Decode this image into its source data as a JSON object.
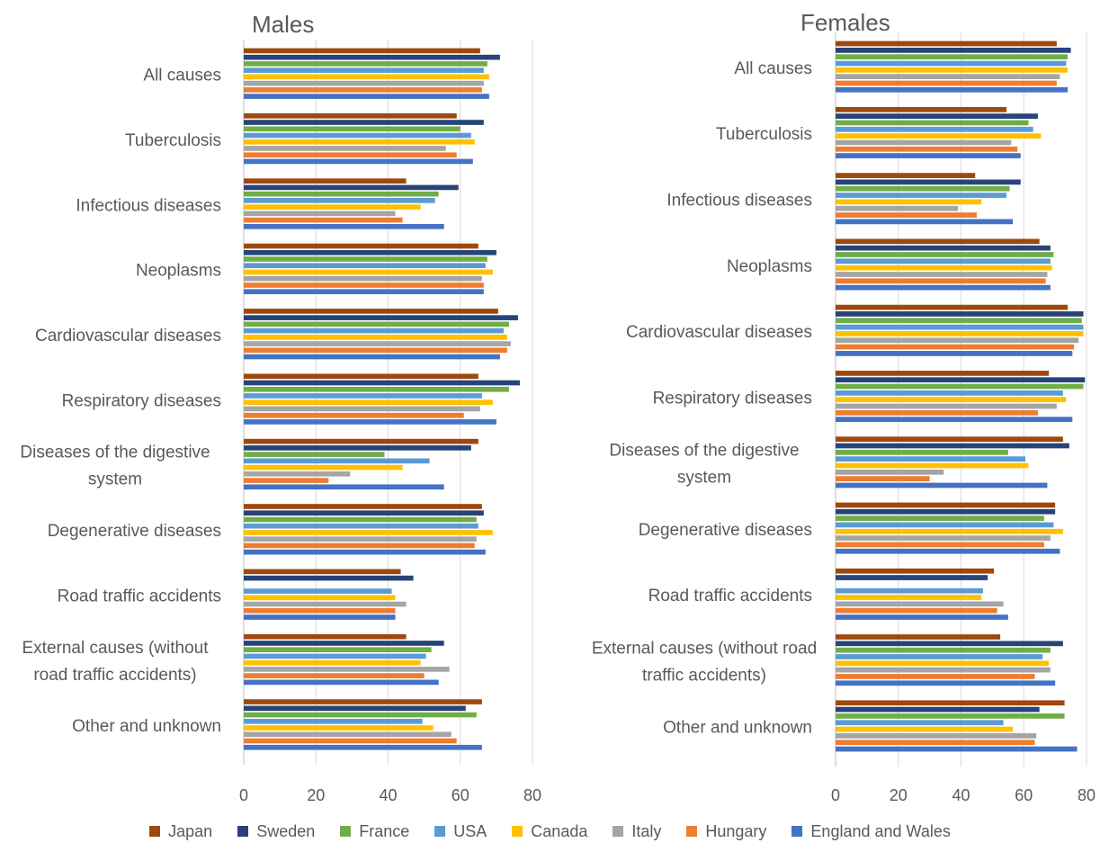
{
  "chart_data": [
    {
      "type": "bar",
      "orientation": "horizontal",
      "title": "Males",
      "categories": [
        "All causes",
        "Tuberculosis",
        "Infectious diseases",
        "Neoplasms",
        "Cardiovascular diseases",
        "Respiratory diseases",
        "Diseases of the digestive system",
        "Degenerative diseases",
        "Road traffic accidents",
        "External causes (without road traffic accidents)",
        "Other and unknown"
      ],
      "category_lines": [
        [
          "All causes"
        ],
        [
          "Tuberculosis"
        ],
        [
          "Infectious diseases"
        ],
        [
          "Neoplasms"
        ],
        [
          "Cardiovascular diseases"
        ],
        [
          "Respiratory diseases"
        ],
        [
          "Diseases of the digestive",
          "system"
        ],
        [
          "Degenerative diseases"
        ],
        [
          "Road traffic accidents"
        ],
        [
          "External causes (without",
          "road traffic accidents)"
        ],
        [
          "Other and unknown"
        ]
      ],
      "xlim": [
        0,
        80
      ],
      "xticks": [
        0,
        20,
        40,
        60,
        80
      ],
      "grid": true,
      "series": [
        {
          "name": "Japan",
          "values": [
            65.5,
            59,
            45,
            65,
            70.5,
            65,
            65,
            66,
            43.5,
            45,
            66
          ]
        },
        {
          "name": "Sweden",
          "values": [
            71,
            66.5,
            59.5,
            70,
            76,
            76.5,
            63,
            66.5,
            47,
            55.5,
            61.5
          ]
        },
        {
          "name": "France",
          "values": [
            67.5,
            60,
            54,
            67.5,
            73.5,
            73.5,
            39,
            64.5,
            0,
            52,
            64.5
          ]
        },
        {
          "name": "USA",
          "values": [
            66.5,
            63,
            53,
            67,
            72,
            66,
            51.5,
            65,
            41,
            50.5,
            49.5
          ]
        },
        {
          "name": "Canada",
          "values": [
            68,
            64,
            49,
            69,
            73,
            69,
            44,
            69,
            42,
            49,
            52.5
          ]
        },
        {
          "name": "Italy",
          "values": [
            66.5,
            56,
            42,
            66,
            74,
            65.5,
            29.5,
            64.5,
            45,
            57,
            57.5
          ]
        },
        {
          "name": "Hungary",
          "values": [
            66,
            59,
            44,
            66.5,
            73,
            61,
            23.5,
            64,
            42,
            50,
            59
          ]
        },
        {
          "name": "England and Wales",
          "values": [
            68,
            63.5,
            55.5,
            66.5,
            71,
            70,
            55.5,
            67,
            42,
            54,
            66
          ]
        }
      ]
    },
    {
      "type": "bar",
      "orientation": "horizontal",
      "title": "Females",
      "categories": [
        "All causes",
        "Tuberculosis",
        "Infectious diseases",
        "Neoplasms",
        "Cardiovascular diseases",
        "Respiratory diseases",
        "Diseases of the digestive system",
        "Degenerative diseases",
        "Road traffic accidents",
        "External causes (without road traffic accidents)",
        "Other and unknown"
      ],
      "category_lines": [
        [
          "All causes"
        ],
        [
          "Tuberculosis"
        ],
        [
          "Infectious diseases"
        ],
        [
          "Neoplasms"
        ],
        [
          "Cardiovascular diseases"
        ],
        [
          "Respiratory diseases"
        ],
        [
          "Diseases of the digestive",
          "system"
        ],
        [
          "Degenerative diseases"
        ],
        [
          "Road traffic accidents"
        ],
        [
          "External causes (without road",
          "traffic accidents)"
        ],
        [
          "Other and unknown"
        ]
      ],
      "xlim": [
        0,
        80
      ],
      "xticks": [
        0,
        20,
        40,
        60,
        80
      ],
      "grid": true,
      "series": [
        {
          "name": "Japan",
          "values": [
            70.5,
            54.5,
            44.5,
            65,
            74,
            68,
            72.5,
            70,
            50.5,
            52.5,
            73
          ]
        },
        {
          "name": "Sweden",
          "values": [
            75,
            64.5,
            59,
            68.5,
            79,
            79.5,
            74.5,
            70,
            48.5,
            72.5,
            65
          ]
        },
        {
          "name": "France",
          "values": [
            74,
            61.5,
            55.5,
            69.5,
            78.5,
            79,
            55,
            66.5,
            0,
            68.5,
            73
          ]
        },
        {
          "name": "USA",
          "values": [
            73.5,
            63,
            54.5,
            68.5,
            79,
            72.5,
            60.5,
            69.5,
            47,
            66,
            53.5
          ]
        },
        {
          "name": "Canada",
          "values": [
            74,
            65.5,
            46.5,
            69,
            79,
            73.5,
            61.5,
            72.5,
            46.5,
            68,
            56.5
          ]
        },
        {
          "name": "Italy",
          "values": [
            71.5,
            56,
            39,
            67.5,
            77.5,
            70.5,
            34.5,
            68.5,
            53.5,
            68.5,
            64
          ]
        },
        {
          "name": "Hungary",
          "values": [
            70.5,
            58,
            45,
            67,
            76,
            64.5,
            30,
            66.5,
            51.5,
            63.5,
            63.5
          ]
        },
        {
          "name": "England and Wales",
          "values": [
            74,
            59,
            56.5,
            68.5,
            75.5,
            75.5,
            67.5,
            71.5,
            55,
            70,
            77
          ]
        }
      ]
    }
  ],
  "legend": [
    {
      "name": "Japan",
      "color": "#9E480E"
    },
    {
      "name": "Sweden",
      "color": "#264478"
    },
    {
      "name": "France",
      "color": "#70AD47"
    },
    {
      "name": "USA",
      "color": "#5B9BD5"
    },
    {
      "name": "Canada",
      "color": "#FFC000"
    },
    {
      "name": "Italy",
      "color": "#A5A5A5"
    },
    {
      "name": "Hungary",
      "color": "#ED7D31"
    },
    {
      "name": "England and Wales",
      "color": "#4472C4"
    }
  ]
}
